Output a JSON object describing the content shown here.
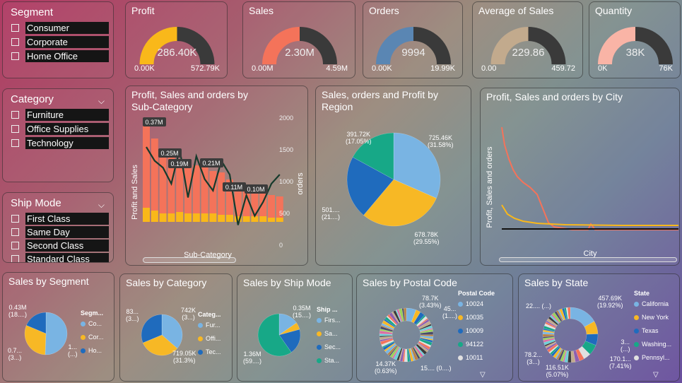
{
  "colors": {
    "profit": "#f9b81a",
    "sales": "#f4735a",
    "orders": "#5a86b3",
    "avg": "#c2aa8d",
    "qty": "#f9b4a6",
    "track": "#3a3a3a",
    "blue": "#79b4e3",
    "navy": "#1f6bbd",
    "green": "#17a887",
    "yellow": "#f7b825"
  },
  "slicers": {
    "segment": {
      "title": "Segment",
      "options": [
        "Consumer",
        "Corporate",
        "Home Office"
      ]
    },
    "category": {
      "title": "Category",
      "options": [
        "Furniture",
        "Office Supplies",
        "Technology"
      ]
    },
    "shipmode": {
      "title": "Ship Mode",
      "options": [
        "First Class",
        "Same Day",
        "Second Class",
        "Standard Class"
      ]
    }
  },
  "kpis": [
    {
      "title": "Profit",
      "value": "286.40K",
      "min": "0.00K",
      "max": "572.79K",
      "fraction": 0.5,
      "color": "#f9b81a"
    },
    {
      "title": "Sales",
      "value": "2.30M",
      "min": "0.00M",
      "max": "4.59M",
      "fraction": 0.5,
      "color": "#f4735a"
    },
    {
      "title": "Orders",
      "value": "9994",
      "min": "0.00K",
      "max": "19.99K",
      "fraction": 0.5,
      "color": "#5a86b3"
    },
    {
      "title": "Average of Sales",
      "value": "229.86",
      "min": "0.00",
      "max": "459.72",
      "fraction": 0.5,
      "color": "#c2aa8d"
    },
    {
      "title": "Quantity",
      "value": "38K",
      "min": "0K",
      "max": "76K",
      "fraction": 0.5,
      "color": "#f9b4a6"
    }
  ],
  "subcat": {
    "title": "Profit, Sales and orders by Sub-Category",
    "ylabel": "Profit and Sales",
    "y2label": "orders",
    "xlabel": "Sub-Category",
    "y2ticks": [
      "2000",
      "1500",
      "1000",
      "500",
      "0"
    ],
    "bar_labels": [
      "0.37M",
      "0.25M",
      "0.19M",
      "0.21M",
      "0.11M",
      "0.10M"
    ]
  },
  "region": {
    "title": "Sales, orders and Profit by Region",
    "labels": [
      {
        "v": "725.46K",
        "p": "(31.58%)"
      },
      {
        "v": "678.78K",
        "p": "(29.55%)"
      },
      {
        "v": "501....",
        "p": "(21....)"
      },
      {
        "v": "391.72K",
        "p": "(17.05%)"
      }
    ],
    "chart_data": {
      "type": "pie",
      "values": [
        31.58,
        29.55,
        21.82,
        17.05
      ]
    }
  },
  "city": {
    "title": "Profit, Sales and orders by City",
    "ylabel": "Profit, Sales and orders",
    "xlabel": "City"
  },
  "segment_pie": {
    "title": "Sales by Segment",
    "legend_title": "Segm...",
    "legend": [
      "Co...",
      "Cor...",
      "Ho..."
    ],
    "labels": [
      {
        "v": "0.43M",
        "p": "(18....)"
      },
      {
        "v": "0.7...",
        "p": "(3...)"
      },
      {
        "v": "1...",
        "p": "(...)"
      }
    ],
    "chart_data": {
      "type": "pie",
      "values": [
        50.6,
        30.7,
        18.7
      ]
    }
  },
  "category_pie": {
    "title": "Sales by Category",
    "legend_title": "Categ...",
    "legend": [
      "Fur...",
      "Offi...",
      "Tec..."
    ],
    "labels": [
      {
        "v": "742K",
        "p": "(3...)"
      },
      {
        "v": "719.05K",
        "p": "(31.3%)"
      },
      {
        "v": "83...",
        "p": "(3...)"
      }
    ],
    "chart_data": {
      "type": "pie",
      "values": [
        36.4,
        32.3,
        31.3
      ]
    }
  },
  "shipmode_pie": {
    "title": "Sales by Ship Mode",
    "legend_title": "Ship ...",
    "legend": [
      "Firs...",
      "Sa...",
      "Sec...",
      "Sta..."
    ],
    "labels": [
      {
        "v": "0.35M",
        "p": "(15....)"
      },
      {
        "v": "1.36M",
        "p": "(59....)"
      }
    ],
    "chart_data": {
      "type": "pie",
      "values": [
        15.3,
        5.5,
        19.5,
        59.7
      ]
    }
  },
  "postal": {
    "title": "Sales by Postal Code",
    "legend_title": "Postal Code",
    "legend": [
      "10024",
      "10035",
      "10009",
      "94122",
      "10011"
    ],
    "labels": [
      {
        "v": "78.7K",
        "p": "(3.43%)"
      },
      {
        "v": "45...",
        "p": "(1....)"
      },
      {
        "v": "14.37K",
        "p": "(0.63%)"
      },
      {
        "v": "15....",
        "p": "(0....)"
      }
    ]
  },
  "state": {
    "title": "Sales by State",
    "legend_title": "State",
    "legend": [
      "California",
      "New York",
      "Texas",
      "Washing...",
      "Pennsyl..."
    ],
    "labels": [
      {
        "v": "457.69K",
        "p": "(19.92%)"
      },
      {
        "v": "22....",
        "p": "(...)"
      },
      {
        "v": "3...",
        "p": "(...)"
      },
      {
        "v": "170.1...",
        "p": "(7.41%)"
      },
      {
        "v": "78.2...",
        "p": "(3...)"
      },
      {
        "v": "116.51K",
        "p": "(5.07%)"
      }
    ]
  }
}
